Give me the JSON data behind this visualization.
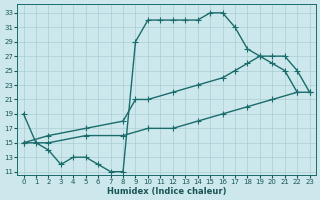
{
  "xlabel": "Humidex (Indice chaleur)",
  "bg_color": "#cce8ec",
  "grid_color": "#aacfd5",
  "line_color": "#1a6b6b",
  "xlim": [
    -0.5,
    23.5
  ],
  "ylim": [
    10.5,
    34.2
  ],
  "yticks": [
    11,
    13,
    15,
    17,
    19,
    21,
    23,
    25,
    27,
    29,
    31,
    33
  ],
  "xticks": [
    0,
    1,
    2,
    3,
    4,
    5,
    6,
    7,
    8,
    9,
    10,
    11,
    12,
    13,
    14,
    15,
    16,
    17,
    18,
    19,
    20,
    21,
    22,
    23
  ],
  "curve1_x": [
    0,
    1,
    2,
    3,
    4,
    5,
    6,
    7,
    8,
    9,
    10,
    11,
    12,
    13,
    14,
    15,
    16,
    17,
    18,
    19,
    20,
    21,
    22
  ],
  "curve1_y": [
    19,
    15,
    14,
    12,
    13,
    13,
    12,
    11,
    11,
    29,
    32,
    32,
    32,
    32,
    32,
    33,
    33,
    31,
    28,
    27,
    26,
    25,
    22
  ],
  "curve2_x": [
    0,
    2,
    5,
    8,
    9,
    10,
    12,
    14,
    16,
    17,
    18,
    19,
    20,
    21,
    22,
    23
  ],
  "curve2_y": [
    15,
    16,
    17,
    18,
    21,
    21,
    22,
    23,
    24,
    25,
    26,
    27,
    27,
    27,
    25,
    22
  ],
  "curve3_x": [
    0,
    2,
    5,
    8,
    10,
    12,
    14,
    16,
    18,
    20,
    22,
    23
  ],
  "curve3_y": [
    15,
    15,
    16,
    16,
    17,
    17,
    18,
    19,
    20,
    21,
    22,
    22
  ],
  "lw": 1.0,
  "ms": 2.0
}
